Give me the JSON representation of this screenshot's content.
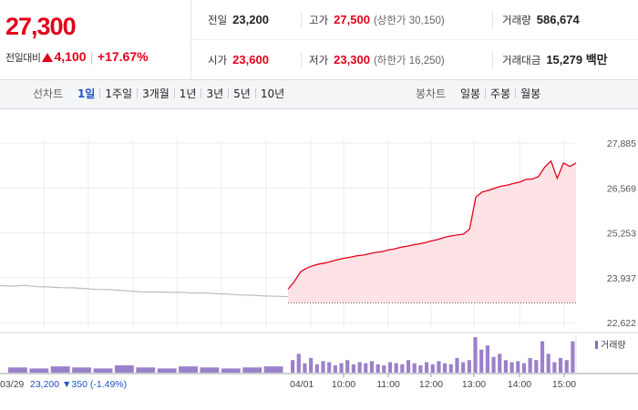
{
  "quote": {
    "price": "27,300",
    "change_label": "전일대비",
    "change_amount": "4,100",
    "change_rate": "+17.67%",
    "prev_close_label": "전일",
    "prev_close": "23,200",
    "high_label": "고가",
    "high": "27,500",
    "upper_limit": "(상한가 30,150)",
    "volume_label": "거래량",
    "volume": "586,674",
    "open_label": "시가",
    "open": "23,600",
    "low_label": "저가",
    "low": "23,300",
    "lower_limit": "(하한가 16,250)",
    "value_label": "거래대금",
    "value": "15,279 백만"
  },
  "tabs": {
    "line_label": "선차트",
    "line_tabs": [
      "1일",
      "1주일",
      "3개월",
      "1년",
      "3년",
      "5년",
      "10년"
    ],
    "line_active": "1일",
    "candle_label": "봉차트",
    "candle_tabs": [
      "일봉",
      "주봉",
      "월봉"
    ]
  },
  "colors": {
    "up": "#e3001b",
    "down": "#1f53c8",
    "prev_line": "#bdbdbd",
    "area_fill": "#fde3e5",
    "volume_bar": "#8a6bbf"
  },
  "chart_data": {
    "type": "line",
    "y_ticks": [
      "27,885",
      "26,569",
      "25,253",
      "23,937",
      "22,622"
    ],
    "ylim": [
      22622,
      27885
    ],
    "prev_day": {
      "date": "03/29",
      "close_text": "23,200",
      "change_text": "350",
      "rate_text": "(-1.49%)",
      "values": [
        23705,
        23688,
        23712,
        23676,
        23664,
        23645,
        23641,
        23620,
        23595,
        23590,
        23566,
        23545,
        23514,
        23520,
        23506,
        23512,
        23485,
        23492,
        23470,
        23455,
        23432,
        23420,
        23404,
        23392,
        23382
      ]
    },
    "today": {
      "date": "04/01",
      "time_ticks": [
        "10:00",
        "11:00",
        "12:00",
        "13:00",
        "14:00",
        "15:00"
      ],
      "baseline": 23200,
      "values": [
        23600,
        23820,
        24110,
        24220,
        24290,
        24340,
        24370,
        24420,
        24470,
        24510,
        24540,
        24580,
        24600,
        24640,
        24680,
        24700,
        24750,
        24780,
        24830,
        24860,
        24900,
        24930,
        24970,
        25020,
        25060,
        25120,
        25160,
        25190,
        25210,
        25360,
        26300,
        26450,
        26500,
        26560,
        26620,
        26650,
        26700,
        26740,
        26820,
        26830,
        26900,
        27180,
        27360,
        26850,
        27300,
        27200,
        27300
      ]
    },
    "volume_label": "거래량",
    "volume": {
      "prev_day": [
        5,
        4,
        6,
        5,
        4,
        7,
        5,
        4,
        6,
        5,
        4,
        5,
        6
      ],
      "today": [
        12,
        18,
        9,
        14,
        8,
        11,
        10,
        7,
        9,
        12,
        8,
        10,
        9,
        11,
        8,
        7,
        10,
        9,
        8,
        12,
        9,
        7,
        10,
        8,
        11,
        9,
        8,
        14,
        10,
        12,
        34,
        22,
        26,
        15,
        18,
        12,
        10,
        11,
        9,
        14,
        12,
        30,
        18,
        10,
        14,
        12,
        30
      ]
    }
  }
}
